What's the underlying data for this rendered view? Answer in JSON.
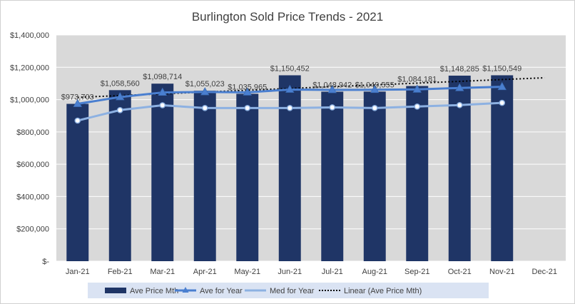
{
  "chart_data": {
    "type": "bar",
    "title": "Burlington Sold Price Trends - 2021",
    "categories": [
      "Jan-21",
      "Feb-21",
      "Mar-21",
      "Apr-21",
      "May-21",
      "Jun-21",
      "Jul-21",
      "Aug-21",
      "Sep-21",
      "Oct-21",
      "Nov-21",
      "Dec-21"
    ],
    "ylim": [
      0,
      1400000
    ],
    "ytick_values": [
      0,
      200000,
      400000,
      600000,
      800000,
      1000000,
      1200000,
      1400000
    ],
    "ytick_labels": [
      "$-",
      "$200,000",
      "$400,000",
      "$600,000",
      "$800,000",
      "$1,000,000",
      "$1,200,000",
      "$1,400,000"
    ],
    "grid": true,
    "legend_position": "bottom",
    "series": [
      {
        "name": "Ave Price Mth",
        "kind": "bar",
        "color": "#1f3566",
        "values": [
          973703,
          1058560,
          1098714,
          1055023,
          1035965,
          1150452,
          1048942,
          1049555,
          1084181,
          1148285,
          1150549,
          null
        ],
        "labels": [
          "$973,703",
          "$1,058,560",
          "$1,098,714",
          "$1,055,023",
          "$1,035,965",
          "$1,150,452",
          "$1,048,942",
          "$1,049,555",
          "$1,084,181",
          "$1,148,285",
          "$1,150,549",
          ""
        ]
      },
      {
        "name": "Ave for Year",
        "kind": "line",
        "marker": "triangle",
        "color": "#4a7fd0",
        "values": [
          973703,
          1016000,
          1044000,
          1047000,
          1045000,
          1062000,
          1060000,
          1061000,
          1063000,
          1072000,
          1079000,
          null
        ]
      },
      {
        "name": "Med for Year",
        "kind": "line",
        "marker": "circle",
        "color": "#8db1e2",
        "values": [
          870000,
          935000,
          965000,
          948000,
          948000,
          948000,
          952000,
          948000,
          957000,
          966000,
          980000,
          null
        ]
      },
      {
        "name": "Linear (Ave Price Mth)",
        "kind": "trendline",
        "color": "#000000",
        "values": [
          1014000,
          1025000,
          1036000,
          1047000,
          1058000,
          1069000,
          1080000,
          1091000,
          1102000,
          1113000,
          1124000,
          1135000
        ]
      }
    ]
  }
}
